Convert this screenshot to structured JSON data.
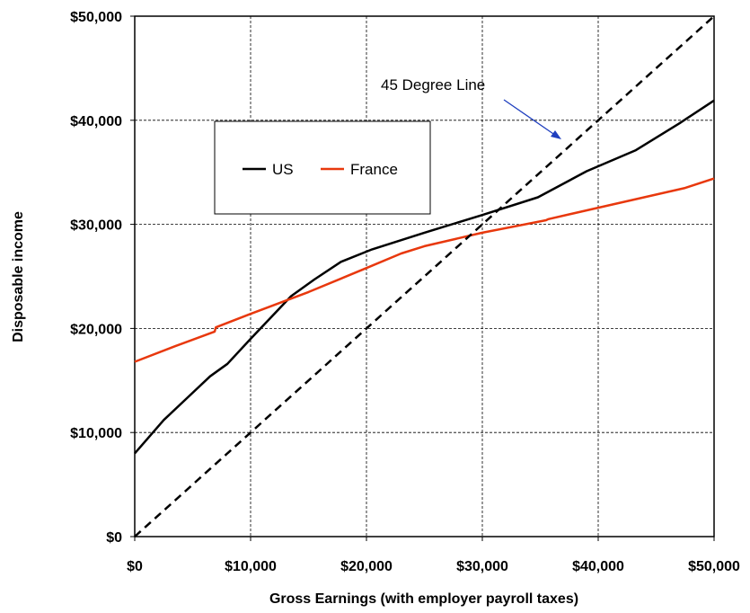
{
  "chart_data": {
    "type": "line",
    "title": "",
    "xlabel": "Gross Earnings (with employer payroll taxes)",
    "ylabel": "Disposable income",
    "xlim": [
      0,
      50000
    ],
    "ylim": [
      0,
      50000
    ],
    "x_ticks": [
      0,
      10000,
      20000,
      30000,
      40000,
      50000
    ],
    "x_tick_labels": [
      "$0",
      "$10,000",
      "$20,000",
      "$30,000",
      "$40,000",
      "$50,000"
    ],
    "y_ticks": [
      0,
      10000,
      20000,
      30000,
      40000,
      50000
    ],
    "y_tick_labels": [
      "$0",
      "$10,000",
      "$20,000",
      "$30,000",
      "$40,000",
      "$50,000"
    ],
    "grid": true,
    "legend_placement": "upper-left",
    "series": [
      {
        "name": "US",
        "color": "#000000",
        "style": "solid",
        "points": [
          [
            0,
            8000
          ],
          [
            2500,
            11200
          ],
          [
            4500,
            13300
          ],
          [
            6500,
            15400
          ],
          [
            8000,
            16600
          ],
          [
            10000,
            19000
          ],
          [
            13500,
            23100
          ],
          [
            15500,
            24700
          ],
          [
            17800,
            26400
          ],
          [
            20500,
            27600
          ],
          [
            25000,
            29200
          ],
          [
            30000,
            30900
          ],
          [
            34800,
            32600
          ],
          [
            39000,
            35100
          ],
          [
            43200,
            37100
          ],
          [
            47000,
            39700
          ],
          [
            50000,
            41900
          ]
        ]
      },
      {
        "name": "France",
        "color": "#e8380d",
        "style": "solid",
        "points": [
          [
            0,
            16800
          ],
          [
            3500,
            18300
          ],
          [
            6900,
            19700
          ],
          [
            7000,
            20100
          ],
          [
            10000,
            21400
          ],
          [
            15000,
            23500
          ],
          [
            20000,
            25800
          ],
          [
            23000,
            27200
          ],
          [
            25000,
            27900
          ],
          [
            30000,
            29200
          ],
          [
            35500,
            30400
          ],
          [
            35700,
            30500
          ],
          [
            40000,
            31600
          ],
          [
            47500,
            33500
          ],
          [
            50000,
            34400
          ]
        ]
      },
      {
        "name": "45 Degree Line",
        "color": "#000000",
        "style": "dashed",
        "points": [
          [
            0,
            0
          ],
          [
            50000,
            50000
          ]
        ]
      }
    ],
    "legend": [
      {
        "label": "US",
        "color": "#000000"
      },
      {
        "label": "France",
        "color": "#e8380d"
      }
    ],
    "annotations": [
      {
        "text": "45 Degree Line",
        "arrow_color": "#1f3fbf",
        "target": [
          37000,
          38000
        ]
      }
    ]
  }
}
